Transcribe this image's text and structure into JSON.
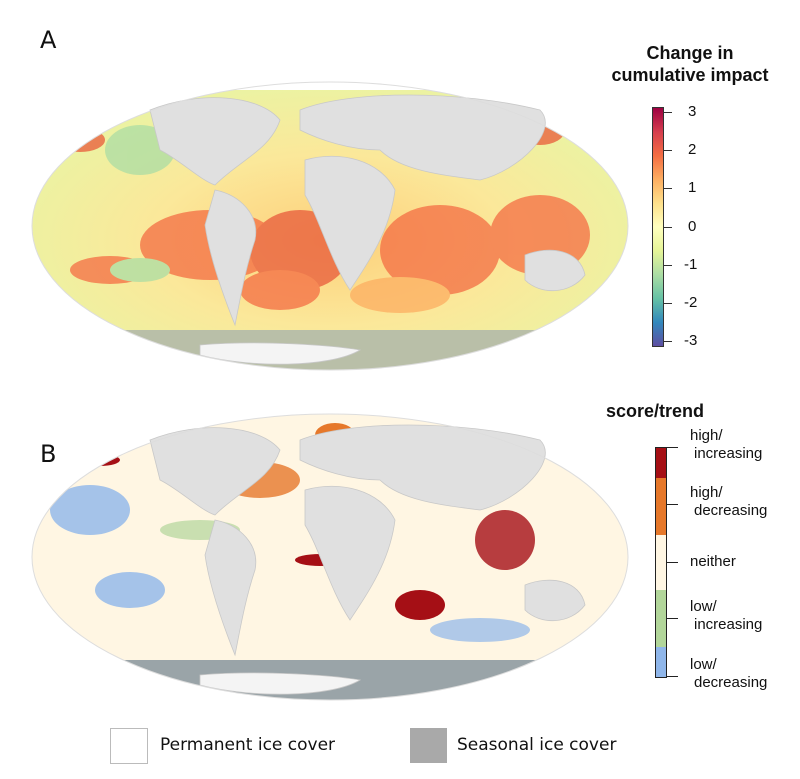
{
  "panel_a": {
    "label": "A",
    "legend_title_line1": "Change in",
    "legend_title_line2": "cumulative impact",
    "colorbar_ticks": [
      "3",
      "2",
      "1",
      "0",
      "-1",
      "-2",
      "-3"
    ],
    "colorbar_range": [
      -3,
      3
    ],
    "colors": [
      "#5e4fa2",
      "#3288bd",
      "#66c2a5",
      "#abdda4",
      "#e6f598",
      "#ffffbf",
      "#fee08b",
      "#fdae61",
      "#f46d43",
      "#d53e4f",
      "#9e0142"
    ]
  },
  "panel_b": {
    "label": "B",
    "legend_title": "score/trend",
    "categories": [
      {
        "line1": "high/",
        "line2": "increasing",
        "color": "#a50f15"
      },
      {
        "line1": "high/",
        "line2": "decreasing",
        "color": "#e6782a"
      },
      {
        "line1": "neither",
        "line2": "",
        "color": "#fff6e3"
      },
      {
        "line1": "low/",
        "line2": "increasing",
        "color": "#b2d69a"
      },
      {
        "line1": "low/",
        "line2": "decreasing",
        "color": "#8fb6ea"
      }
    ]
  },
  "ice_legend": {
    "permanent": {
      "label": "Permanent ice cover",
      "color": "#ffffff"
    },
    "seasonal": {
      "label": "Seasonal ice cover",
      "color": "#a9a9a9"
    }
  },
  "land_color": "#e0e0e0"
}
